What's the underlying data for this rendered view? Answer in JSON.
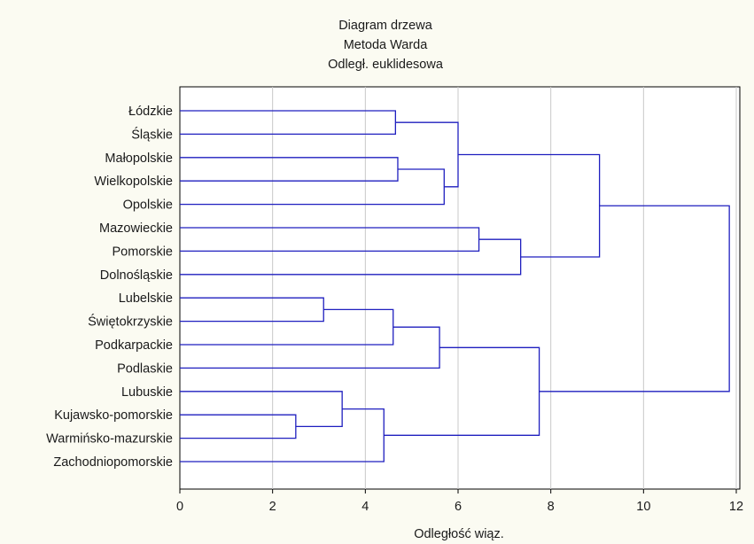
{
  "chart_data": {
    "type": "dendrogram",
    "title": [
      "Diagram drzewa",
      "Metoda Warda",
      "Odległ. euklidesowa"
    ],
    "xlabel": "Odległość wiąz.",
    "xlim": [
      0,
      12
    ],
    "xticks": [
      0,
      2,
      4,
      6,
      8,
      10,
      12
    ],
    "grid": "vertical",
    "line_color": "#1f1fbf",
    "leaves": [
      "Łódzkie",
      "Śląskie",
      "Małopolskie",
      "Wielkopolskie",
      "Opolskie",
      "Mazowieckie",
      "Pomorskie",
      "Dolnośląskie",
      "Lubelskie",
      "Świętokrzyskie",
      "Podkarpackie",
      "Podlaskie",
      "Lubuskie",
      "Kujawsko-pomorskie",
      "Warmińsko-mazurskie",
      "Zachodniopomorskie"
    ],
    "merges": [
      {
        "id": "m1",
        "children": [
          "Lubelskie",
          "Świętokrzyskie"
        ],
        "height": 3.1
      },
      {
        "id": "m2",
        "children": [
          "Kujawsko-pomorskie",
          "Warmińsko-mazurskie"
        ],
        "height": 2.5
      },
      {
        "id": "m3",
        "children": [
          "Lubuskie",
          "m2"
        ],
        "height": 3.5
      },
      {
        "id": "m4",
        "children": [
          "m3",
          "Zachodniopomorskie"
        ],
        "height": 4.4
      },
      {
        "id": "m5",
        "children": [
          "m1",
          "Podkarpackie"
        ],
        "height": 4.6
      },
      {
        "id": "m6",
        "children": [
          "m5",
          "Podlaskie"
        ],
        "height": 5.6
      },
      {
        "id": "m7",
        "children": [
          "m6",
          "m4"
        ],
        "height": 7.75
      },
      {
        "id": "m8",
        "children": [
          "Łódzkie",
          "Śląskie"
        ],
        "height": 4.65
      },
      {
        "id": "m9",
        "children": [
          "Małopolskie",
          "Wielkopolskie"
        ],
        "height": 4.7
      },
      {
        "id": "m10",
        "children": [
          "m9",
          "Opolskie"
        ],
        "height": 5.7
      },
      {
        "id": "m11",
        "children": [
          "m8",
          "m10"
        ],
        "height": 6.0
      },
      {
        "id": "m12",
        "children": [
          "Mazowieckie",
          "Pomorskie"
        ],
        "height": 6.45
      },
      {
        "id": "m13",
        "children": [
          "m12",
          "Dolnośląskie"
        ],
        "height": 7.35
      },
      {
        "id": "m14",
        "children": [
          "m11",
          "m13"
        ],
        "height": 9.05
      },
      {
        "id": "m15",
        "children": [
          "m14",
          "m7"
        ],
        "height": 11.85
      }
    ]
  }
}
